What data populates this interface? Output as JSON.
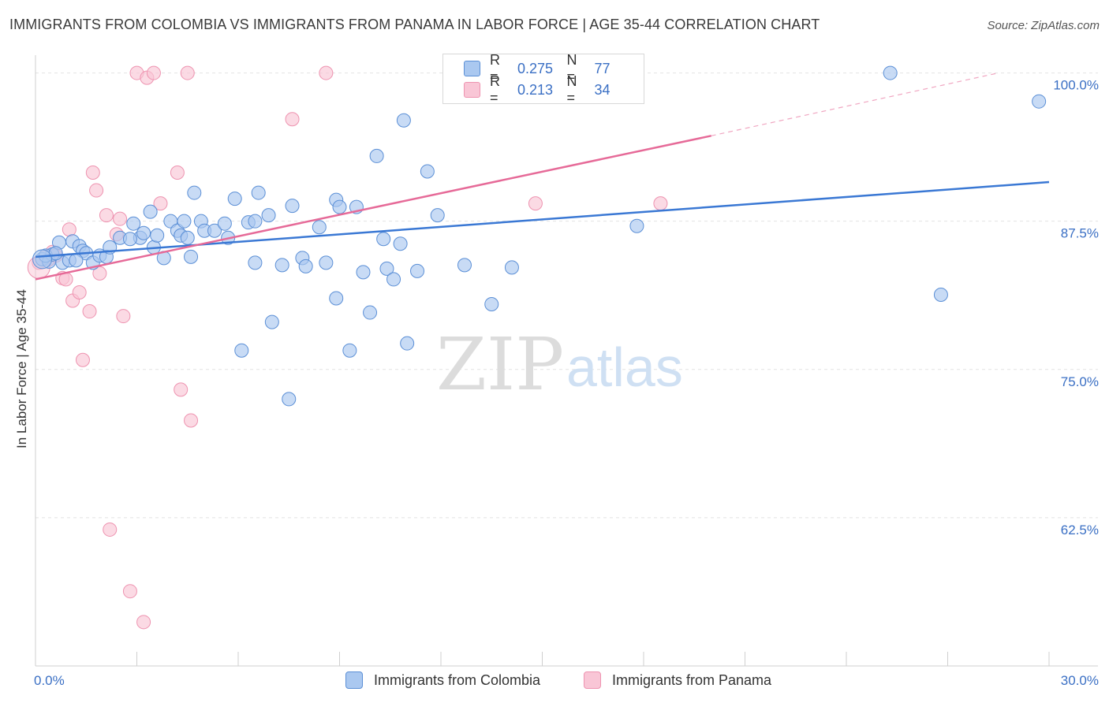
{
  "title": "IMMIGRANTS FROM COLOMBIA VS IMMIGRANTS FROM PANAMA IN LABOR FORCE | AGE 35-44 CORRELATION CHART",
  "source": "Source: ZipAtlas.com",
  "watermark": {
    "zip": "ZIP",
    "atlas": "atlas"
  },
  "legend": {
    "r_label": "R =",
    "n_label": "N =",
    "rows": [
      {
        "r": "0.275",
        "n": "77",
        "color": "#aac8f0"
      },
      {
        "r": "0.213",
        "n": "34",
        "color": "#f4b8cb"
      }
    ]
  },
  "colors": {
    "colombia_fill": "#aac8f0",
    "colombia_stroke": "#5b8fd6",
    "colombia_line": "#3a78d4",
    "panama_fill": "#f9c6d6",
    "panama_stroke": "#ee93b0",
    "panama_line": "#e66a98",
    "axis_text": "#3a6fc4",
    "grid": "#e2e2e2"
  },
  "chart_data": {
    "type": "scatter",
    "title": "IMMIGRANTS FROM COLOMBIA VS IMMIGRANTS FROM PANAMA IN LABOR FORCE | AGE 35-44 CORRELATION CHART",
    "xlabel": "",
    "ylabel": "In Labor Force | Age 35-44",
    "xlim": [
      0,
      30
    ],
    "ylim": [
      50,
      101.5
    ],
    "x_tick_labels": [
      "0.0%",
      "30.0%"
    ],
    "y_ticks": [
      62.5,
      75.0,
      87.5,
      100.0
    ],
    "y_tick_labels": [
      "62.5%",
      "75.0%",
      "87.5%",
      "100.0%"
    ],
    "x_minor_ticks": [
      3,
      6,
      9,
      12,
      15,
      18,
      21,
      24,
      27,
      30
    ],
    "grid": true,
    "legend_placement": "top-center",
    "series": [
      {
        "name": "Immigrants from Colombia",
        "r": 0.275,
        "n": 77,
        "trend": {
          "x0": 0,
          "y0": 84.5,
          "x1": 30,
          "y1": 90.8
        },
        "points": [
          [
            0.2,
            84.3
          ],
          [
            0.4,
            84.1
          ],
          [
            0.5,
            84.7
          ],
          [
            0.7,
            85.7
          ],
          [
            0.8,
            84.0
          ],
          [
            1.0,
            84.2
          ],
          [
            1.1,
            85.8
          ],
          [
            1.3,
            85.4
          ],
          [
            1.4,
            85.0
          ],
          [
            1.5,
            84.8
          ],
          [
            1.7,
            84.0
          ],
          [
            1.9,
            84.6
          ],
          [
            2.1,
            84.5
          ],
          [
            2.2,
            85.3
          ],
          [
            2.5,
            86.1
          ],
          [
            2.9,
            87.3
          ],
          [
            3.1,
            86.1
          ],
          [
            3.2,
            86.5
          ],
          [
            3.4,
            88.3
          ],
          [
            3.5,
            85.3
          ],
          [
            3.8,
            84.4
          ],
          [
            4.0,
            87.5
          ],
          [
            4.2,
            86.7
          ],
          [
            4.3,
            86.3
          ],
          [
            4.5,
            86.1
          ],
          [
            4.4,
            87.5
          ],
          [
            4.6,
            84.5
          ],
          [
            4.7,
            89.9
          ],
          [
            4.9,
            87.5
          ],
          [
            5.0,
            86.7
          ],
          [
            5.3,
            86.7
          ],
          [
            5.6,
            87.3
          ],
          [
            5.7,
            86.1
          ],
          [
            5.9,
            89.4
          ],
          [
            6.1,
            76.6
          ],
          [
            6.3,
            87.4
          ],
          [
            6.5,
            87.5
          ],
          [
            6.6,
            89.9
          ],
          [
            6.5,
            84.0
          ],
          [
            6.9,
            88.0
          ],
          [
            7.0,
            79.0
          ],
          [
            7.3,
            83.8
          ],
          [
            7.6,
            88.8
          ],
          [
            7.9,
            84.4
          ],
          [
            8.0,
            83.7
          ],
          [
            8.4,
            87.0
          ],
          [
            8.6,
            84.0
          ],
          [
            8.9,
            89.3
          ],
          [
            9.0,
            88.7
          ],
          [
            8.9,
            81.0
          ],
          [
            9.3,
            76.6
          ],
          [
            9.5,
            88.7
          ],
          [
            9.7,
            83.2
          ],
          [
            9.9,
            79.8
          ],
          [
            10.1,
            93.0
          ],
          [
            10.3,
            86.0
          ],
          [
            10.4,
            83.5
          ],
          [
            10.6,
            82.6
          ],
          [
            10.8,
            85.6
          ],
          [
            10.9,
            96.0
          ],
          [
            11.0,
            77.2
          ],
          [
            11.3,
            83.3
          ],
          [
            11.6,
            91.7
          ],
          [
            11.9,
            88.0
          ],
          [
            12.7,
            83.8
          ],
          [
            13.5,
            80.5
          ],
          [
            14.1,
            83.6
          ],
          [
            17.8,
            87.1
          ],
          [
            7.5,
            72.5
          ],
          [
            25.3,
            100.0
          ],
          [
            26.8,
            81.3
          ],
          [
            29.7,
            97.6
          ],
          [
            2.8,
            86.0
          ],
          [
            1.2,
            84.2
          ],
          [
            3.6,
            86.3
          ],
          [
            0.3,
            84.6
          ],
          [
            0.6,
            84.8
          ]
        ]
      },
      {
        "name": "Immigrants from Panama",
        "r": 0.213,
        "n": 34,
        "trend": {
          "x0": 0,
          "y0": 82.6,
          "x1": 20.0,
          "y1": 94.7,
          "dash_to": {
            "x": 28.5,
            "y": 100.0
          }
        },
        "points": [
          [
            0.1,
            84.0
          ],
          [
            0.3,
            84.5
          ],
          [
            0.4,
            84.3
          ],
          [
            0.5,
            84.9
          ],
          [
            0.6,
            84.6
          ],
          [
            0.8,
            82.7
          ],
          [
            0.9,
            82.6
          ],
          [
            1.0,
            86.8
          ],
          [
            1.1,
            80.8
          ],
          [
            1.3,
            81.5
          ],
          [
            1.4,
            75.8
          ],
          [
            1.6,
            79.9
          ],
          [
            1.7,
            91.6
          ],
          [
            1.8,
            90.1
          ],
          [
            1.9,
            83.1
          ],
          [
            2.1,
            88.0
          ],
          [
            2.2,
            61.5
          ],
          [
            2.4,
            86.4
          ],
          [
            2.5,
            87.7
          ],
          [
            2.6,
            79.5
          ],
          [
            2.8,
            56.3
          ],
          [
            3.0,
            100.0
          ],
          [
            3.2,
            53.7
          ],
          [
            3.3,
            99.6
          ],
          [
            3.5,
            100.0
          ],
          [
            3.7,
            89.0
          ],
          [
            4.2,
            91.6
          ],
          [
            4.3,
            73.3
          ],
          [
            4.5,
            100.0
          ],
          [
            4.6,
            70.7
          ],
          [
            7.6,
            96.1
          ],
          [
            8.6,
            100.0
          ],
          [
            14.8,
            89.0
          ],
          [
            18.5,
            89.0
          ]
        ]
      }
    ]
  },
  "bottom_legend": [
    {
      "label": "Immigrants from Colombia",
      "color": "#aac8f0",
      "border": "#5b8fd6"
    },
    {
      "label": "Immigrants from Panama",
      "color": "#f9c6d6",
      "border": "#ee93b0"
    }
  ]
}
